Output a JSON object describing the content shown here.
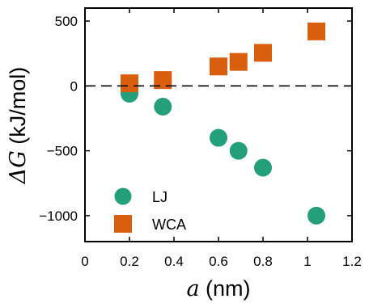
{
  "chart_data": {
    "type": "scatter",
    "title": "",
    "xlabel": {
      "symbol": "a",
      "unit": " (nm)"
    },
    "ylabel": {
      "symbol": "ΔG",
      "unit": " (kJ/mol)"
    },
    "xlim": [
      0,
      1.2
    ],
    "ylim": [
      -1200,
      600
    ],
    "xticks": [
      0,
      0.2,
      0.4,
      0.6,
      0.8,
      1.0,
      1.2
    ],
    "xtick_labels": [
      "0",
      "0.2",
      "0.4",
      "0.6",
      "0.8",
      "1",
      "1.2"
    ],
    "yticks": [
      -1000,
      -500,
      0,
      500
    ],
    "ytick_labels": [
      "−1000",
      "−500",
      "0",
      "500"
    ],
    "reference_line": {
      "y": 0,
      "style": "dashed"
    },
    "legend": {
      "position": "bottom-left"
    },
    "grid": false,
    "series": [
      {
        "name": "LJ",
        "marker": "circle",
        "color": "#23a07a",
        "points": [
          {
            "x": 0.2,
            "y": -60
          },
          {
            "x": 0.35,
            "y": -160
          },
          {
            "x": 0.6,
            "y": -400
          },
          {
            "x": 0.69,
            "y": -500
          },
          {
            "x": 0.8,
            "y": -630
          },
          {
            "x": 1.04,
            "y": -1000
          }
        ]
      },
      {
        "name": "WCA",
        "marker": "square",
        "color": "#d95f0e",
        "points": [
          {
            "x": 0.2,
            "y": 20
          },
          {
            "x": 0.35,
            "y": 45
          },
          {
            "x": 0.6,
            "y": 150
          },
          {
            "x": 0.69,
            "y": 185
          },
          {
            "x": 0.8,
            "y": 255
          },
          {
            "x": 1.04,
            "y": 420
          }
        ]
      }
    ]
  }
}
